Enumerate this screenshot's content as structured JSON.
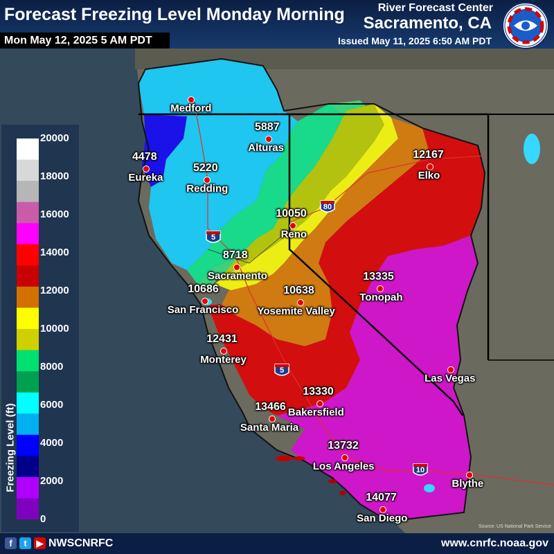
{
  "header": {
    "title": "Forecast Freezing Level Monday Morning",
    "valid_time": "Mon May 12, 2025 5 AM PDT",
    "office": "River Forecast Center",
    "location": "Sacramento, CA",
    "issued": "Issued May 11, 2025 6:50 AM PDT",
    "logo_text": "NATIONAL WEATHER SERVICE"
  },
  "legend": {
    "title": "Freezing Level (ft)",
    "ticks": [
      "20000",
      "18000",
      "16000",
      "14000",
      "12000",
      "10000",
      "8000",
      "6000",
      "4000",
      "2000",
      "0"
    ],
    "colors": [
      "#ffffff",
      "#d8d8d8",
      "#b6b6b6",
      "#c85ca8",
      "#ff00ff",
      "#ff0000",
      "#c80000",
      "#d47000",
      "#ffff00",
      "#d0d000",
      "#00e070",
      "#00a050",
      "#00ffff",
      "#00b0f0",
      "#0000ff",
      "#00008b",
      "#b000ff",
      "#8000c0"
    ]
  },
  "cities": [
    {
      "name": "Medford",
      "value": ""
    },
    {
      "name": "Eureka",
      "value": "4478"
    },
    {
      "name": "Redding",
      "value": "5220"
    },
    {
      "name": "Alturas",
      "value": "5887"
    },
    {
      "name": "Elko",
      "value": "12167"
    },
    {
      "name": "Reno",
      "value": "10050"
    },
    {
      "name": "Sacramento",
      "value": "8718"
    },
    {
      "name": "San Francisco",
      "value": "10686"
    },
    {
      "name": "Yosemite Valley",
      "value": "10638"
    },
    {
      "name": "Tonopah",
      "value": "13335"
    },
    {
      "name": "Monterey",
      "value": "12431"
    },
    {
      "name": "Las Vegas",
      "value": ""
    },
    {
      "name": "Bakersfield",
      "value": "13330"
    },
    {
      "name": "Santa Maria",
      "value": "13466"
    },
    {
      "name": "Los Angeles",
      "value": "13732"
    },
    {
      "name": "Blythe",
      "value": ""
    },
    {
      "name": "San Diego",
      "value": "14077"
    }
  ],
  "highways": [
    "5",
    "5",
    "80",
    "10"
  ],
  "map_credit": "Source: US National Park Service",
  "footer": {
    "social_icons": [
      "facebook-icon",
      "twitter-icon",
      "youtube-icon"
    ],
    "handle": "NWSCNRFC",
    "url": "www.cnrfc.noaa.gov"
  }
}
